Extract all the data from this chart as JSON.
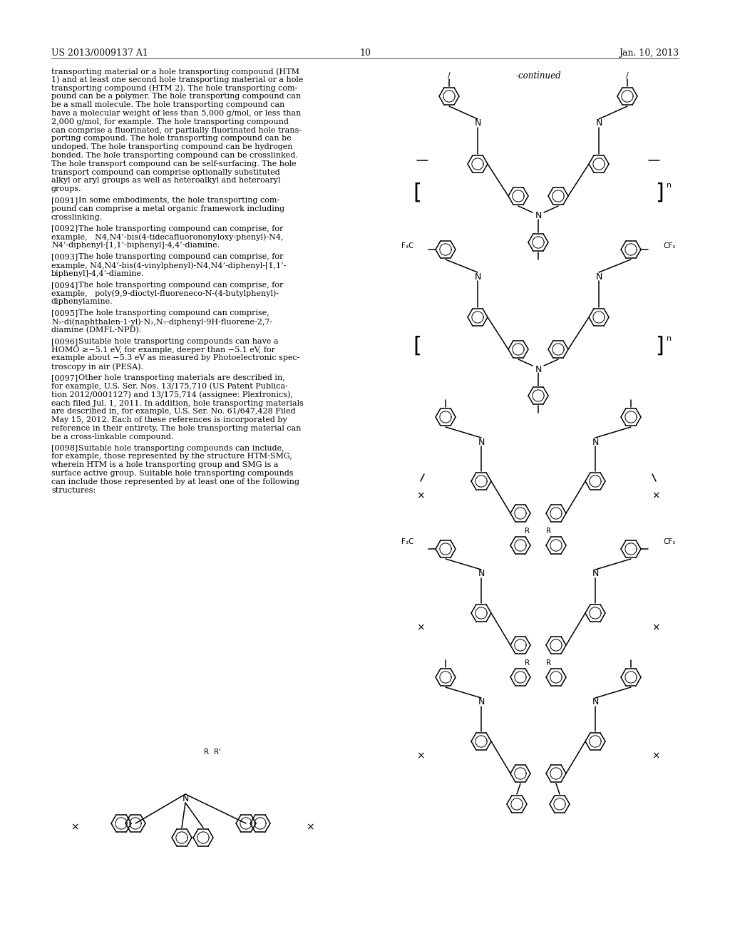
{
  "header_left": "US 2013/0009137 A1",
  "header_right": "Jan. 10, 2013",
  "page_number": "10",
  "continued_label": "-continued",
  "background_color": "#ffffff",
  "text_color": "#000000",
  "body_text_left": [
    {
      "paragraph": "[0091]",
      "indent": true,
      "text": "transporting material or a hole transporting compound (HTM 1) and at least one second hole transporting material or a hole transporting compound (HTM 2). The hole transporting compound can be a polymer. The hole transporting compound can be a small molecule. The hole transporting compound can have a molecular weight of less than 5,000 g/mol, or less than 2,000 g/mol, for example. The hole transporting compound can comprise a fluorinated, or partially fluorinated hole transporting compound. The hole transporting compound can be undoped. The hole transporting compound can be hydrogen bonded. The hole transporting compound can be crosslinked. The hole transport compound can be self-surfacing. The hole transport compound can comprise optionally substituted alkyl or aryl groups as well as heteroalkyl and heteroaryl groups."
    },
    {
      "paragraph": "[0091]",
      "indent": true,
      "text": "In some embodiments, the hole transporting compound can comprise a metal organic framework including crosslinking."
    },
    {
      "paragraph": "[0092]",
      "indent": true,
      "text": "The hole transporting compound can comprise, for example, N4,N4’-bis(4-tidecafluorononyloxy-phenyl)-N4, N4’-diphenyl-[1,1’-biphenyl]-4,4’-diamine."
    },
    {
      "paragraph": "[0093]",
      "indent": true,
      "text": "The hole transporting compound can comprise, for example, N4,N4’-bis(4-vinylphenyl)-N4,N4’-diphenyl-[1,1’-biphenyl]-4,4’-diamine."
    },
    {
      "paragraph": "[0094]",
      "indent": true,
      "text": "The hole transporting compound can comprise, for example, poly(9,9-dioctyl-fluoreneco-N-(4-butylphenyl)-diphenylamine."
    },
    {
      "paragraph": "[0095]",
      "indent": true,
      "text": "The hole transporting compound can comprise, N₇-di(naphthalen-1-yl)-N₂,N₇-diphenyl-9H-fluorene-2,7-diamine (DMFL-NPD)."
    },
    {
      "paragraph": "[0096]",
      "indent": true,
      "text": "Suitable hole transporting compounds can have a HOMO ≥−5.1 eV, for example, deeper than −5.1 eV, for example about −5.3 eV as measured by Photoelectronic spectroscopy in air (PESA)."
    },
    {
      "paragraph": "[0097]",
      "indent": true,
      "text": "Other hole transporting materials are described in, for example, U.S. Ser. Nos. 13/175,710 (US Patent Publication 2012/0001127) and 13/175,714 (assignee: Plextronics), each filed Jul. 1, 2011. In addition, hole transporting materials are described in, for example, U.S. Ser. No. 61/647,428 Filed May 15, 2012. Each of these references is incorporated by reference in their entirety. The hole transporting material can be a cross-linkable compound."
    },
    {
      "paragraph": "[0098]",
      "indent": true,
      "text": "Suitable hole transporting compounds can include, for example, those represented by the structure HTM-SMG, wherein HTM is a hole transporting group and SMG is a surface active group. Suitable hole transporting compounds can include those represented by at least one of the following structures:"
    }
  ]
}
